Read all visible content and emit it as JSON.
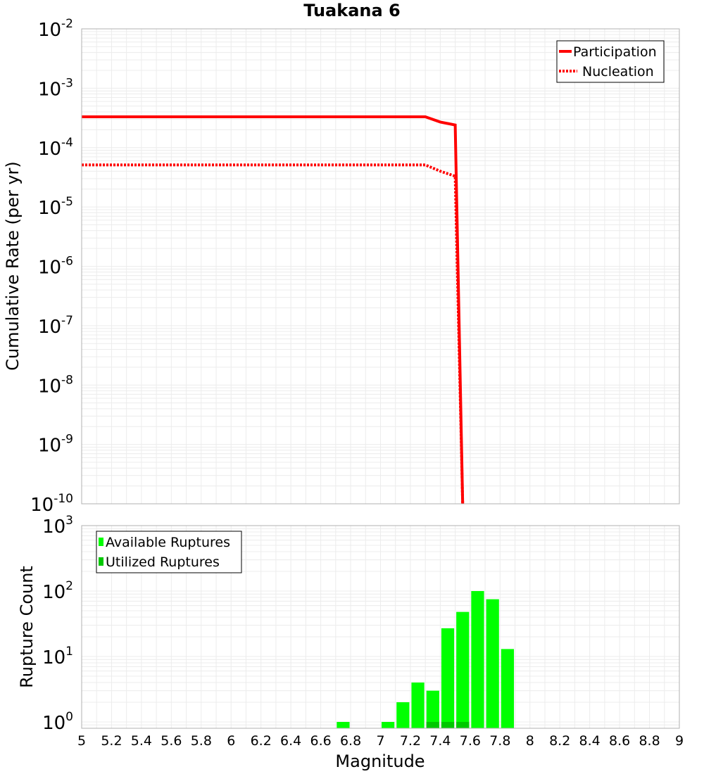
{
  "chart_data": [
    {
      "type": "line",
      "title": "Tuakana 6",
      "xlabel": "",
      "ylabel": "Cumulative Rate (per yr)",
      "yscale": "log",
      "xlim": [
        5,
        9
      ],
      "ylim": [
        1e-10,
        0.01
      ],
      "yticks": [
        {
          "base": "10",
          "exp": "-2",
          "value": 0.01
        },
        {
          "base": "10",
          "exp": "-3",
          "value": 0.001
        },
        {
          "base": "10",
          "exp": "-4",
          "value": 0.0001
        },
        {
          "base": "10",
          "exp": "-5",
          "value": 1e-05
        },
        {
          "base": "10",
          "exp": "-6",
          "value": 1e-06
        },
        {
          "base": "10",
          "exp": "-7",
          "value": 1e-07
        },
        {
          "base": "10",
          "exp": "-8",
          "value": 1e-08
        },
        {
          "base": "10",
          "exp": "-9",
          "value": 1e-09
        },
        {
          "base": "10",
          "exp": "-10",
          "value": 1e-10
        }
      ],
      "series": [
        {
          "name": "Participation",
          "color": "#ff0000",
          "style": "solid",
          "points": [
            [
              5.0,
              0.00033
            ],
            [
              7.3,
              0.00033
            ],
            [
              7.4,
              0.00027
            ],
            [
              7.5,
              0.00024
            ],
            [
              7.55,
              1e-10
            ]
          ]
        },
        {
          "name": "Nucleation",
          "color": "#ff0000",
          "style": "dotted",
          "points": [
            [
              5.0,
              5.1e-05
            ],
            [
              7.3,
              5.1e-05
            ],
            [
              7.4,
              4e-05
            ],
            [
              7.5,
              3.3e-05
            ],
            [
              7.55,
              1e-10
            ]
          ]
        }
      ],
      "legend": [
        "Participation",
        "Nucleation"
      ],
      "legend_position": "top-right"
    },
    {
      "type": "bar",
      "title": "",
      "xlabel": "Magnitude",
      "ylabel": "Rupture Count",
      "yscale": "log",
      "xlim": [
        5,
        9
      ],
      "ylim": [
        0.8,
        1000
      ],
      "yticks": [
        {
          "base": "10",
          "exp": "3",
          "value": 1000
        },
        {
          "base": "10",
          "exp": "2",
          "value": 100
        },
        {
          "base": "10",
          "exp": "1",
          "value": 10
        },
        {
          "base": "10",
          "exp": "0",
          "value": 1
        }
      ],
      "xticks": [
        "5",
        "5.2",
        "5.4",
        "5.6",
        "5.8",
        "6",
        "6.2",
        "6.4",
        "6.6",
        "6.8",
        "7",
        "7.2",
        "7.4",
        "7.6",
        "7.8",
        "8",
        "8.2",
        "8.4",
        "8.6",
        "8.8",
        "9"
      ],
      "bin_width": 0.1,
      "series": [
        {
          "name": "Available Ruptures",
          "color": "#00ff00",
          "centers": [
            6.75,
            7.05,
            7.15,
            7.25,
            7.35,
            7.45,
            7.55,
            7.65,
            7.75,
            7.85
          ],
          "values": [
            1,
            1,
            2,
            4,
            3,
            27,
            48,
            100,
            75,
            13
          ]
        },
        {
          "name": "Utilized Ruptures",
          "color": "#00c800",
          "centers": [
            7.35,
            7.45,
            7.55
          ],
          "values": [
            1,
            1,
            1
          ]
        }
      ],
      "legend": [
        "Available Ruptures",
        "Utilized Ruptures"
      ],
      "legend_position": "top-left"
    }
  ]
}
